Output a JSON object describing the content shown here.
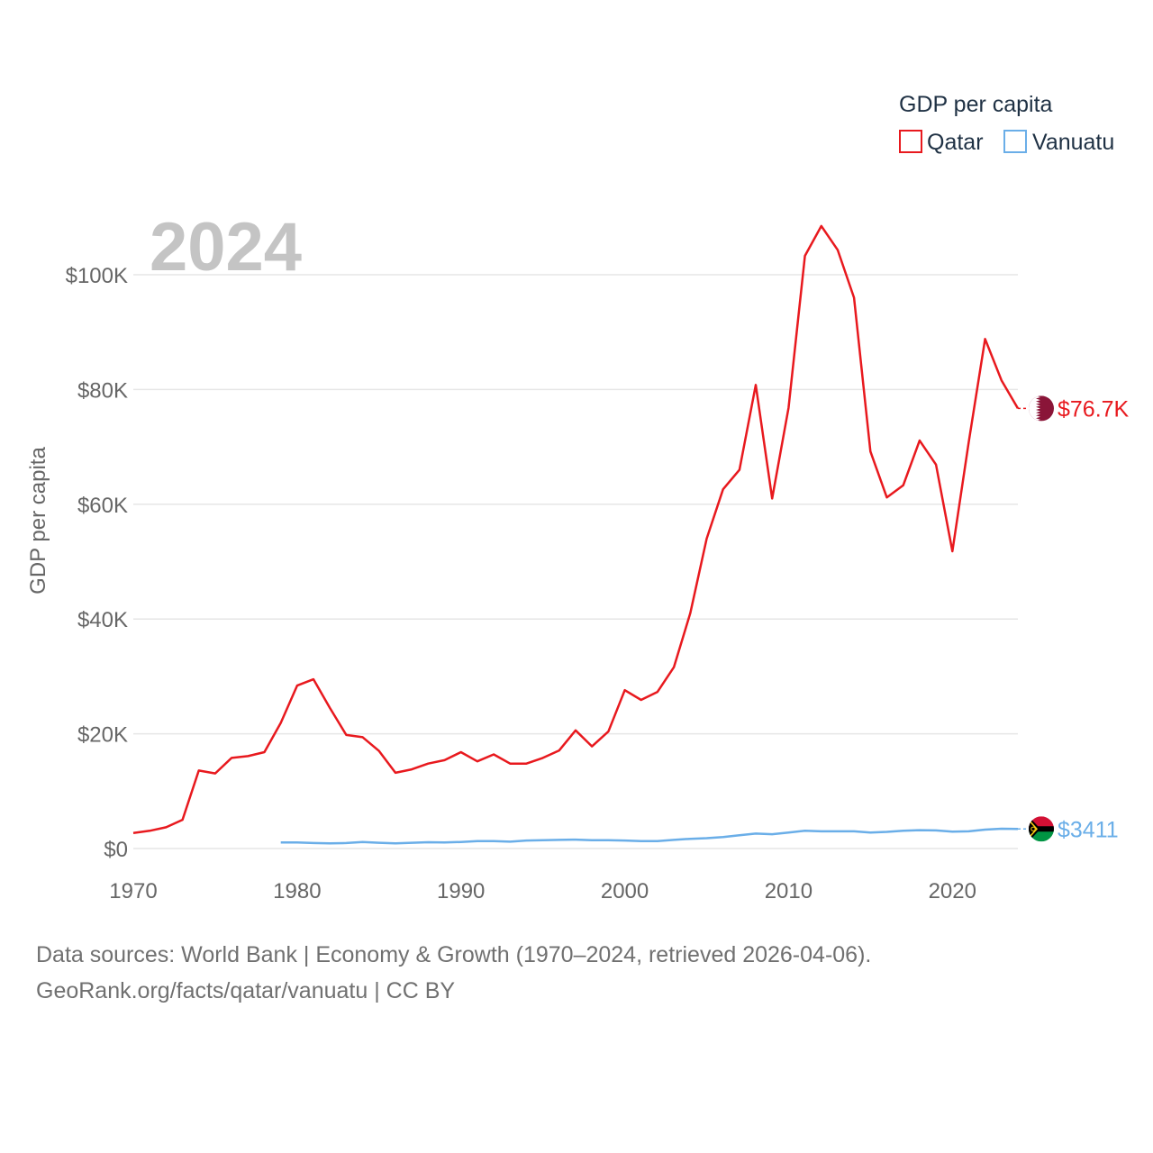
{
  "chart_data": {
    "type": "line",
    "title": "GDP per capita",
    "ylabel": "GDP per capita",
    "xlabel": "",
    "year_label": "2024",
    "xlim": [
      1970,
      2024
    ],
    "ylim": [
      0,
      110000
    ],
    "x_ticks": [
      {
        "value": 1970,
        "label": "1970"
      },
      {
        "value": 1980,
        "label": "1980"
      },
      {
        "value": 1990,
        "label": "1990"
      },
      {
        "value": 2000,
        "label": "2000"
      },
      {
        "value": 2010,
        "label": "2010"
      },
      {
        "value": 2020,
        "label": "2020"
      }
    ],
    "y_ticks": [
      {
        "value": 0,
        "label": "$0"
      },
      {
        "value": 20000,
        "label": "$20K"
      },
      {
        "value": 40000,
        "label": "$40K"
      },
      {
        "value": 60000,
        "label": "$60K"
      },
      {
        "value": 80000,
        "label": "$80K"
      },
      {
        "value": 100000,
        "label": "$100K"
      }
    ],
    "grid": true,
    "legend_position": "top-right",
    "series": [
      {
        "name": "Qatar",
        "color": "#e8191e",
        "end_label": "$76.7K",
        "flag_icon": "qatar-flag-icon",
        "x": [
          1970,
          1971,
          1972,
          1973,
          1974,
          1975,
          1976,
          1977,
          1978,
          1979,
          1980,
          1981,
          1982,
          1983,
          1984,
          1985,
          1986,
          1987,
          1988,
          1989,
          1990,
          1991,
          1992,
          1993,
          1994,
          1995,
          1996,
          1997,
          1998,
          1999,
          2000,
          2001,
          2002,
          2003,
          2004,
          2005,
          2006,
          2007,
          2008,
          2009,
          2010,
          2011,
          2012,
          2013,
          2014,
          2015,
          2016,
          2017,
          2018,
          2019,
          2020,
          2021,
          2022,
          2023,
          2024
        ],
        "values": [
          2700,
          3100,
          3700,
          5000,
          13600,
          13100,
          15800,
          16100,
          16800,
          21900,
          28400,
          29500,
          24500,
          19800,
          19400,
          17000,
          13200,
          13800,
          14800,
          15400,
          16800,
          15200,
          16400,
          14800,
          14800,
          15800,
          17100,
          20600,
          17800,
          20400,
          27600,
          25900,
          27300,
          31600,
          41000,
          54000,
          62600,
          66000,
          80800,
          61000,
          76800,
          103300,
          108500,
          104300,
          96000,
          69200,
          61200,
          63300,
          71100,
          66900,
          51800,
          70800,
          88800,
          81600,
          76700
        ]
      },
      {
        "name": "Vanuatu",
        "color": "#6aaee8",
        "end_label": "$3411",
        "flag_icon": "vanuatu-flag-icon",
        "x": [
          1979,
          1980,
          1981,
          1982,
          1983,
          1984,
          1985,
          1986,
          1987,
          1988,
          1989,
          1990,
          1991,
          1992,
          1993,
          1994,
          1995,
          1996,
          1997,
          1998,
          1999,
          2000,
          2001,
          2002,
          2003,
          2004,
          2005,
          2006,
          2007,
          2008,
          2009,
          2010,
          2011,
          2012,
          2013,
          2014,
          2015,
          2016,
          2017,
          2018,
          2019,
          2020,
          2021,
          2022,
          2023,
          2024
        ],
        "values": [
          1050,
          1050,
          950,
          900,
          950,
          1150,
          1000,
          900,
          1000,
          1100,
          1050,
          1150,
          1300,
          1300,
          1200,
          1400,
          1450,
          1500,
          1550,
          1450,
          1450,
          1400,
          1300,
          1300,
          1500,
          1700,
          1800,
          2000,
          2300,
          2600,
          2500,
          2800,
          3100,
          3000,
          3000,
          3000,
          2800,
          2900,
          3100,
          3200,
          3150,
          2950,
          3000,
          3300,
          3450,
          3411
        ]
      }
    ]
  },
  "footer": {
    "line1": "Data sources: World Bank | Economy & Growth (1970–2024, retrieved 2026-04-06).",
    "line2": "GeoRank.org/facts/qatar/vanuatu | CC BY"
  }
}
